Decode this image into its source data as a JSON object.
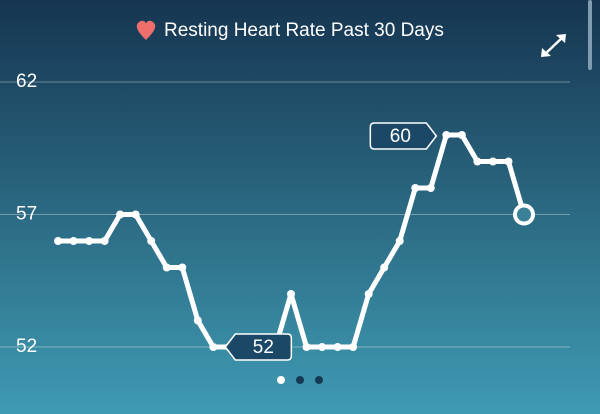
{
  "chart_data": {
    "type": "line",
    "title": "Resting Heart Rate Past 30 Days",
    "values": [
      56,
      56,
      56,
      56,
      57,
      57,
      56,
      55,
      55,
      53,
      52,
      52,
      52,
      52,
      52,
      54,
      52,
      52,
      52,
      52,
      54,
      55,
      56,
      58,
      58,
      60,
      60,
      59,
      59,
      59,
      57
    ],
    "color": "#ffffff",
    "ylim": [
      51,
      63
    ],
    "yticks": [
      52,
      57,
      62
    ],
    "grid": true
  }
}
